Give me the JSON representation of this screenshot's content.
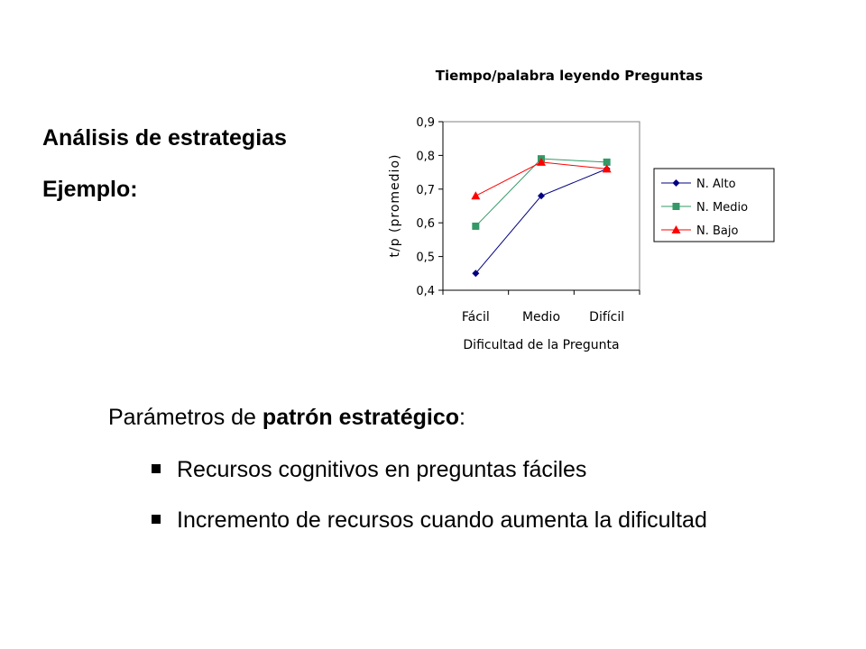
{
  "slide": {
    "heading1": "Análisis de estrategias",
    "heading2": "Ejemplo:",
    "params_prefix": "Parámetros de ",
    "params_bold": "patrón estratégico",
    "params_suffix": ":",
    "bullets": [
      "Recursos cognitivos en preguntas fáciles",
      "Incremento de recursos cuando aumenta la dificultad"
    ]
  },
  "chart_data": {
    "type": "line",
    "title": "Tiempo/palabra leyendo Preguntas",
    "xlabel": "Dificultad de la Pregunta",
    "ylabel": "t/p (promedio)",
    "categories": [
      "Fácil",
      "Medio",
      "Difícil"
    ],
    "ylim": [
      0.4,
      0.9
    ],
    "yticks": [
      "0,4",
      "0,5",
      "0,6",
      "0,7",
      "0,8",
      "0,9"
    ],
    "grid": false,
    "legend_position": "right",
    "series": [
      {
        "name": "N. Alto",
        "values": [
          0.45,
          0.68,
          0.76
        ],
        "color": "#000080",
        "marker": "diamond"
      },
      {
        "name": "N. Medio",
        "values": [
          0.59,
          0.79,
          0.78
        ],
        "color": "#339966",
        "marker": "square"
      },
      {
        "name": "N. Bajo",
        "values": [
          0.68,
          0.78,
          0.76
        ],
        "color": "#ff0000",
        "marker": "triangle"
      }
    ]
  }
}
